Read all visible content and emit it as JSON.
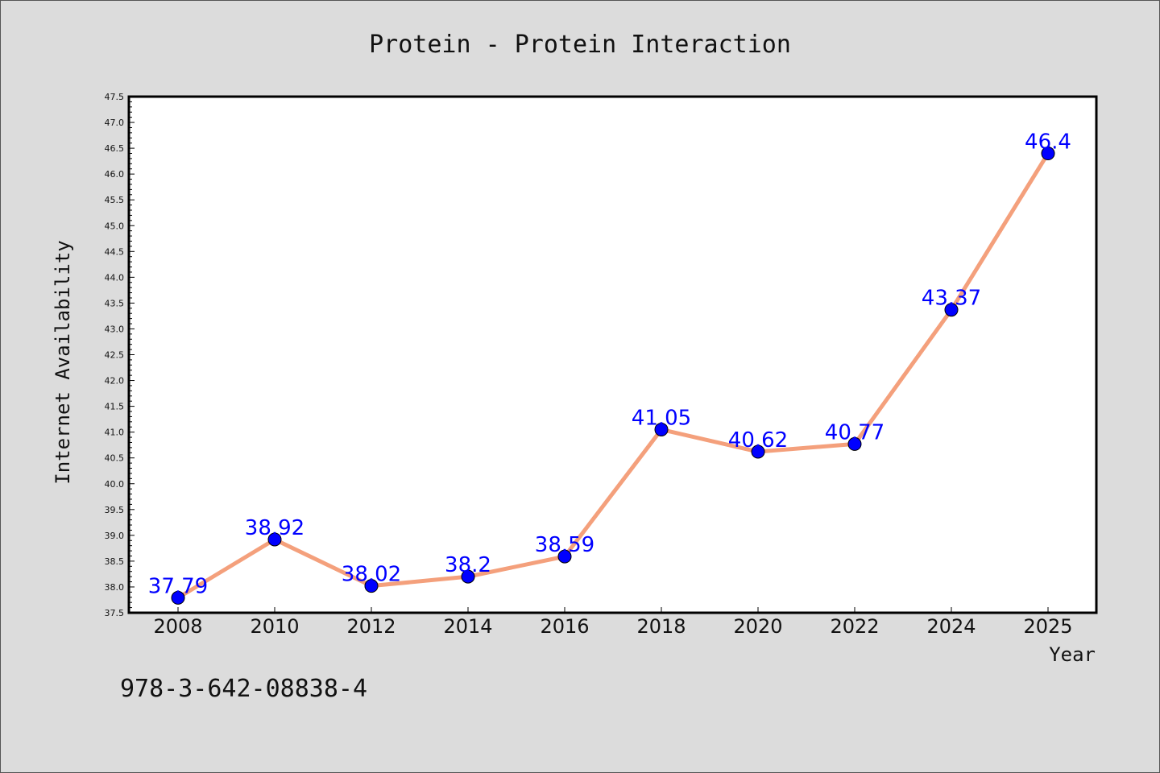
{
  "chart_data": {
    "type": "line",
    "title": "Protein - Protein Interaction",
    "xlabel": "Year",
    "ylabel": "Internet Availability",
    "categories": [
      "2008",
      "2010",
      "2012",
      "2014",
      "2016",
      "2018",
      "2020",
      "2022",
      "2024",
      "2025"
    ],
    "series": [
      {
        "values": [
          37.79,
          38.92,
          38.02,
          38.2,
          38.59,
          41.05,
          40.62,
          40.77,
          43.37,
          46.4
        ]
      }
    ],
    "data_labels": [
      "37.79",
      "38.92",
      "38.02",
      "38.2",
      "38.59",
      "41.05",
      "40.62",
      "40.77",
      "43.37",
      "46.4"
    ],
    "ylim": [
      37.5,
      47.5
    ],
    "yticks": [
      "37.5",
      "38.0",
      "38.5",
      "39.0",
      "39.5",
      "40.0",
      "40.5",
      "41.0",
      "41.5",
      "42.0",
      "42.5",
      "43.0",
      "43.5",
      "44.0",
      "44.5",
      "45.0",
      "45.5",
      "46.0",
      "46.5",
      "47.0",
      "47.5"
    ],
    "grid": false,
    "line_color": "#f4a07c",
    "marker_color": "#0000ff",
    "label_color": "#0000ff"
  },
  "footer": {
    "isbn": "978-3-642-08838-4"
  }
}
